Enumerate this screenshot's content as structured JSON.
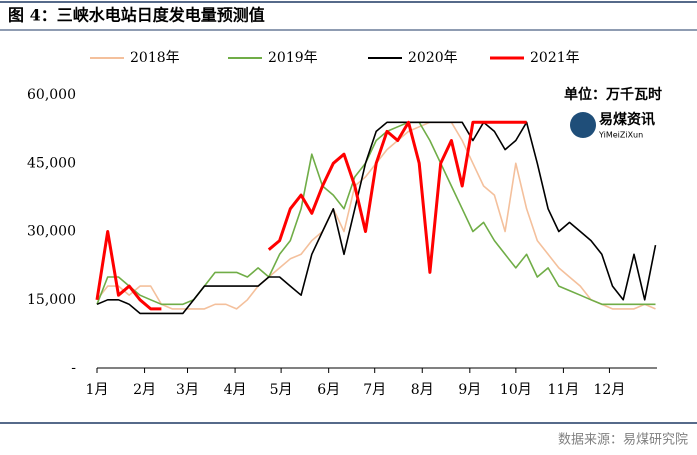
{
  "chart_data": {
    "type": "line",
    "title": "图 4：三峡水电站日度发电量预测值",
    "unit_note": "单位：万千瓦时",
    "logo": "易煤资讯",
    "logo_sub": "YiMeiZiXun",
    "source": "数据来源：易煤研究院",
    "x": [
      1,
      8,
      15,
      22,
      29,
      36,
      43,
      50,
      57,
      64,
      71,
      78,
      85,
      92,
      99,
      106,
      113,
      120,
      127,
      134,
      141,
      148,
      155,
      162,
      169,
      176,
      183,
      190,
      197,
      204,
      211,
      218,
      225,
      232,
      239,
      246,
      253,
      260,
      267,
      274,
      281,
      288,
      295,
      302,
      309,
      316,
      323,
      330,
      337,
      344,
      351,
      358,
      365
    ],
    "xlim": [
      1,
      366
    ],
    "xticks": [
      {
        "value": 1,
        "label": "1月"
      },
      {
        "value": 32,
        "label": "2月"
      },
      {
        "value": 60,
        "label": "3月"
      },
      {
        "value": 91,
        "label": "4月"
      },
      {
        "value": 121,
        "label": "5月"
      },
      {
        "value": 152,
        "label": "6月"
      },
      {
        "value": 182,
        "label": "7月"
      },
      {
        "value": 213,
        "label": "8月"
      },
      {
        "value": 244,
        "label": "9月"
      },
      {
        "value": 274,
        "label": "10月"
      },
      {
        "value": 305,
        "label": "11月"
      },
      {
        "value": 335,
        "label": "12月"
      }
    ],
    "ylim": [
      0,
      60000
    ],
    "yticks": [
      {
        "value": 0,
        "label": "-"
      },
      {
        "value": 15000,
        "label": "15,000"
      },
      {
        "value": 30000,
        "label": "30,000"
      },
      {
        "value": 45000,
        "label": "45,000"
      },
      {
        "value": 60000,
        "label": "60,000"
      }
    ],
    "legend": "top",
    "series": [
      {
        "name": "2018年",
        "color": "#f4c09c",
        "values": [
          15000,
          18000,
          18000,
          16000,
          18000,
          18000,
          14000,
          13000,
          13000,
          13000,
          13000,
          14000,
          14000,
          13000,
          15000,
          18000,
          20000,
          22000,
          24000,
          25000,
          28000,
          30000,
          35000,
          30000,
          40000,
          42000,
          45000,
          48000,
          50000,
          52000,
          53000,
          54000,
          54000,
          54000,
          50000,
          45000,
          40000,
          38000,
          30000,
          45000,
          35000,
          28000,
          25000,
          22000,
          20000,
          18000,
          15000,
          14000,
          13000,
          13000,
          13000,
          14000,
          13000
        ]
      },
      {
        "name": "2019年",
        "color": "#70ad47",
        "values": [
          14000,
          20000,
          20000,
          18000,
          16000,
          15000,
          14000,
          14000,
          14000,
          15000,
          18000,
          21000,
          21000,
          21000,
          20000,
          22000,
          20000,
          25000,
          28000,
          35000,
          47000,
          40000,
          38000,
          35000,
          42000,
          45000,
          50000,
          52000,
          53000,
          54000,
          54000,
          50000,
          45000,
          40000,
          35000,
          30000,
          32000,
          28000,
          25000,
          22000,
          25000,
          20000,
          22000,
          18000,
          17000,
          16000,
          15000,
          14000,
          14000,
          14000,
          14000,
          14000,
          14000
        ]
      },
      {
        "name": "2020年",
        "color": "#000000",
        "values": [
          14000,
          15000,
          15000,
          14000,
          12000,
          12000,
          12000,
          12000,
          12000,
          15000,
          18000,
          18000,
          18000,
          18000,
          18000,
          18000,
          20000,
          20000,
          18000,
          16000,
          25000,
          30000,
          35000,
          25000,
          35000,
          45000,
          52000,
          54000,
          54000,
          54000,
          54000,
          54000,
          54000,
          54000,
          54000,
          50000,
          54000,
          52000,
          48000,
          50000,
          54000,
          45000,
          35000,
          30000,
          32000,
          30000,
          28000,
          25000,
          18000,
          15000,
          25000,
          15000,
          27000
        ]
      },
      {
        "name": "2021年",
        "color": "#ff0000",
        "values": [
          15000,
          30000,
          16000,
          18000,
          15000,
          13000,
          13000,
          null,
          null,
          null,
          null,
          null,
          null,
          null,
          null,
          null,
          26000,
          28000,
          35000,
          38000,
          34000,
          40000,
          45000,
          47000,
          40000,
          30000,
          45000,
          52000,
          50000,
          54000,
          45000,
          21000,
          45000,
          50000,
          40000,
          54000,
          54000,
          54000,
          54000,
          54000,
          54000,
          null,
          null,
          null,
          null,
          null,
          null,
          null,
          null,
          null,
          null,
          null,
          null
        ]
      }
    ]
  }
}
